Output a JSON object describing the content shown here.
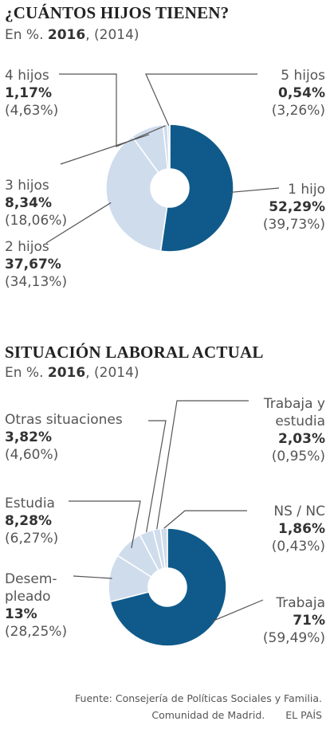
{
  "colors": {
    "major": "#0f5a8a",
    "minor": "#cfdcec",
    "edge": "#ffffff"
  },
  "footer": {
    "line1": "Fuente: Consejería de Políticas Sociales y Familia.",
    "line2": "Comunidad de Madrid.",
    "brand": "EL PAÍS"
  },
  "chart_data": [
    {
      "type": "pie",
      "donut": true,
      "title": "¿CUÁNTOS HIJOS TIENEN?",
      "subtitle_prefix": "En %.",
      "subtitle_year": "2016",
      "subtitle_prev": ", (2014)",
      "slices": [
        {
          "name": "1 hijo",
          "value": 52.29,
          "value_label": "52,29%",
          "prev_label": "(39,73%)"
        },
        {
          "name": "2 hijos",
          "value": 37.67,
          "value_label": "37,67%",
          "prev_label": "(34,13%)"
        },
        {
          "name": "3 hijos",
          "value": 8.34,
          "value_label": "8,34%",
          "prev_label": "(18,06%)"
        },
        {
          "name": "4 hijos",
          "value": 1.17,
          "value_label": "1,17%",
          "prev_label": "(4,63%)"
        },
        {
          "name": "5 hijos",
          "value": 0.54,
          "value_label": "0,54%",
          "prev_label": "(3,26%)"
        }
      ]
    },
    {
      "type": "pie",
      "donut": true,
      "title": "SITUACIÓN LABORAL ACTUAL",
      "subtitle_prefix": "En %.",
      "subtitle_year": "2016",
      "subtitle_prev": ", (2014)",
      "slices": [
        {
          "name": "Trabaja",
          "value": 71,
          "value_label": "71%",
          "prev_label": "(59,49%)"
        },
        {
          "name": "Desem-\npleado",
          "value": 13,
          "value_label": "13%",
          "prev_label": "(28,25%)"
        },
        {
          "name": "Estudia",
          "value": 8.28,
          "value_label": "8,28%",
          "prev_label": "(6,27%)"
        },
        {
          "name": "Otras situaciones",
          "value": 3.82,
          "value_label": "3,82%",
          "prev_label": "(4,60%)"
        },
        {
          "name": "Trabaja y\nestudia",
          "value": 2.03,
          "value_label": "2,03%",
          "prev_label": "(0,95%)"
        },
        {
          "name": "NS / NC",
          "value": 1.86,
          "value_label": "1,86%",
          "prev_label": "(0,43%)"
        }
      ]
    }
  ]
}
